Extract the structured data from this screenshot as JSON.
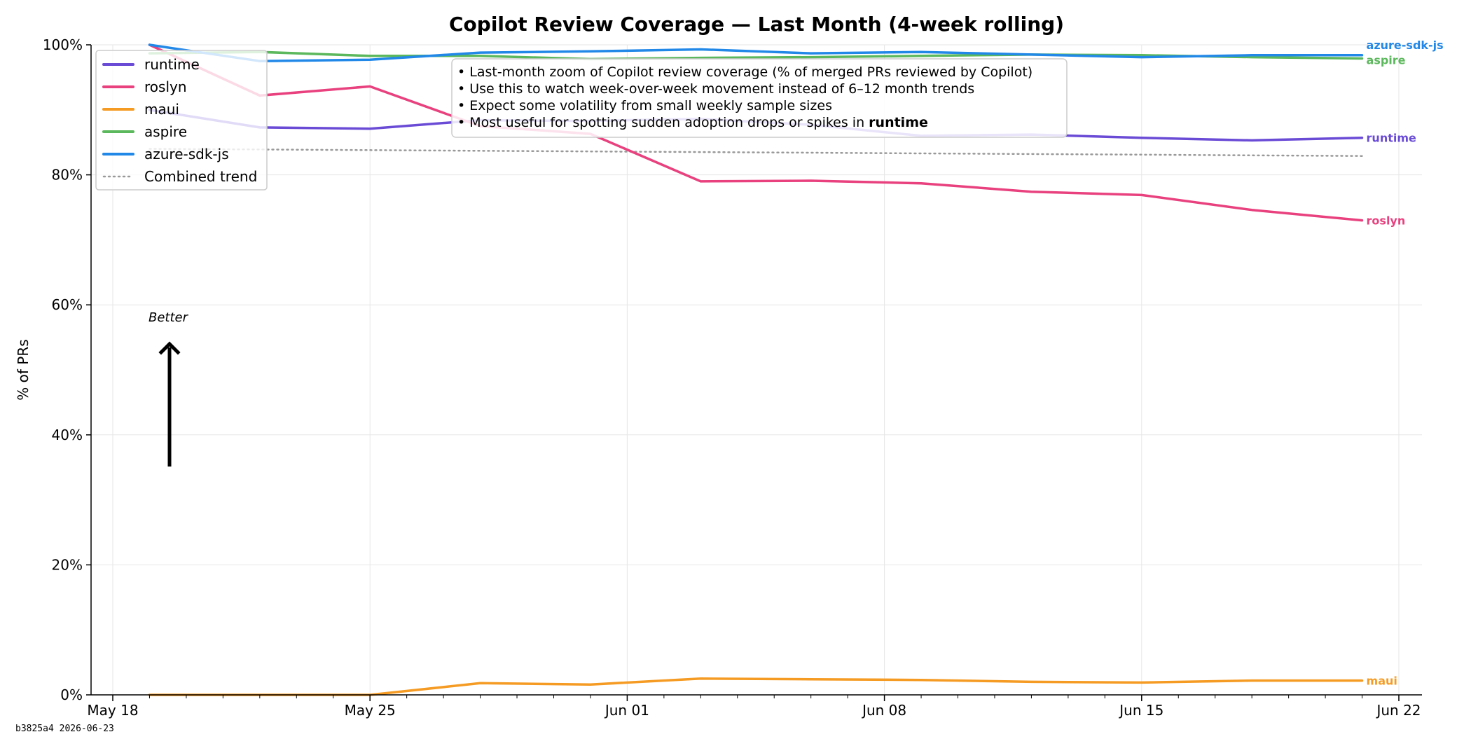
{
  "chart_data": {
    "type": "line",
    "title": "Copilot Review Coverage — Last Month (4-week rolling)",
    "xlabel": "",
    "ylabel": "% of PRs",
    "x": [
      "2026-05-19",
      "2026-05-22",
      "2026-05-25",
      "2026-05-28",
      "2026-05-31",
      "2026-06-03",
      "2026-06-06",
      "2026-06-09",
      "2026-06-12",
      "2026-06-15",
      "2026-06-18",
      "2026-06-21"
    ],
    "xlim": [
      "2026-05-18",
      "2026-06-22"
    ],
    "ylim": [
      0,
      100
    ],
    "x_ticks": [
      "May 18",
      "May 25",
      "Jun 01",
      "Jun 08",
      "Jun 15",
      "Jun 22"
    ],
    "x_tick_dates": [
      "2026-05-18",
      "2026-05-25",
      "2026-06-01",
      "2026-06-08",
      "2026-06-15",
      "2026-06-22"
    ],
    "y_ticks": [
      "0%",
      "20%",
      "40%",
      "60%",
      "80%",
      "100%"
    ],
    "y_tick_values": [
      0,
      20,
      40,
      60,
      80,
      100
    ],
    "grid": true,
    "legend_position": "top-left",
    "series": [
      {
        "name": "runtime",
        "color": "#6a4bd6",
        "values": [
          90.0,
          87.3,
          87.1,
          88.4,
          88.3,
          88.6,
          87.7,
          86.0,
          86.2,
          85.7,
          85.3,
          85.7
        ]
      },
      {
        "name": "roslyn",
        "color": "#e8417e",
        "values": [
          100.0,
          92.2,
          93.6,
          87.5,
          86.3,
          79.0,
          79.1,
          78.7,
          77.4,
          76.9,
          74.6,
          73.0
        ]
      },
      {
        "name": "maui",
        "color": "#f59b23",
        "values": [
          0.0,
          0.0,
          0.0,
          1.8,
          1.6,
          2.5,
          2.4,
          2.3,
          2.0,
          1.9,
          2.2,
          2.2
        ]
      },
      {
        "name": "aspire",
        "color": "#5cb85c",
        "values": [
          98.7,
          98.9,
          98.3,
          98.3,
          97.8,
          98.0,
          98.1,
          98.3,
          98.5,
          98.4,
          98.1,
          97.9
        ]
      },
      {
        "name": "azure-sdk-js",
        "color": "#2288e8",
        "values": [
          100.0,
          97.5,
          97.7,
          98.8,
          99.0,
          99.3,
          98.7,
          98.9,
          98.5,
          98.1,
          98.4,
          98.4
        ]
      }
    ],
    "trend": {
      "name": "Combined trend",
      "color": "#999999",
      "values": [
        84.0,
        83.9,
        83.8,
        83.7,
        83.6,
        83.5,
        83.4,
        83.3,
        83.2,
        83.1,
        83.0,
        82.9
      ]
    },
    "annotation": {
      "lines": [
        "• Last-month zoom of Copilot review coverage (% of merged PRs reviewed by Copilot)",
        "• Use this to watch week-over-week movement instead of 6–12 month trends",
        "• Expect some volatility from small weekly sample sizes"
      ],
      "last_line_prefix": "• Most useful for spotting sudden adoption drops or spikes in ",
      "last_line_bold": "runtime"
    },
    "better_label": "Better",
    "footer_stamp": "b3825a4  2026-06-23"
  }
}
